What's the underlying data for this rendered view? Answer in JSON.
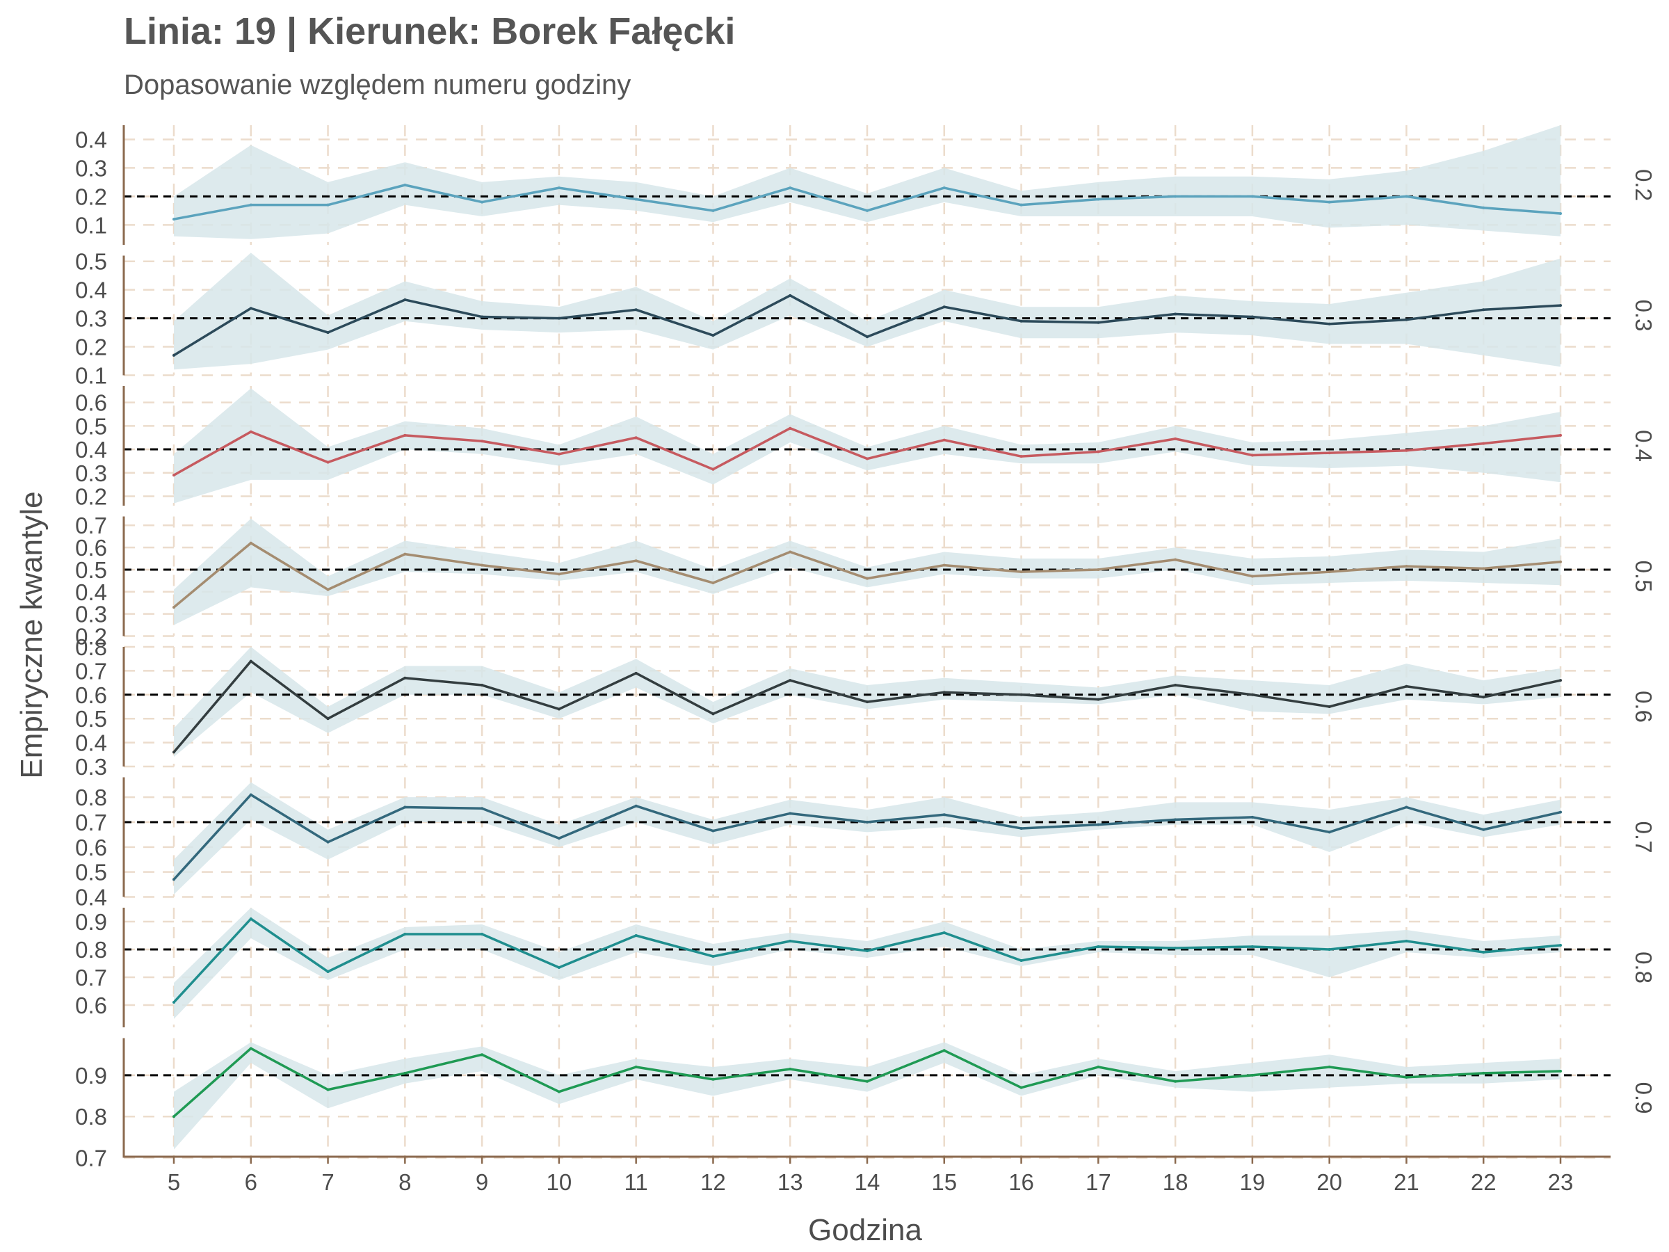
{
  "chart_data": {
    "type": "line",
    "title": "Linia: 19 | Kierunek: Borek Fałęcki",
    "subtitle": "Dopasowanie względem numeru godziny",
    "xlabel": "Godzina",
    "ylabel": "Empiryczne kwantyle",
    "x": [
      5,
      6,
      7,
      8,
      9,
      10,
      11,
      12,
      13,
      14,
      15,
      16,
      17,
      18,
      19,
      20,
      21,
      22,
      23
    ],
    "grid": true,
    "panels": [
      {
        "facet_label": "0.2",
        "reference": 0.2,
        "color": "#5ba3bd",
        "ylim": [
          0.03,
          0.45
        ],
        "yticks": [
          "0.1",
          "0.2",
          "0.3",
          "0.4"
        ],
        "values": [
          0.12,
          0.17,
          0.17,
          0.24,
          0.18,
          0.23,
          0.19,
          0.15,
          0.23,
          0.15,
          0.23,
          0.17,
          0.19,
          0.2,
          0.2,
          0.18,
          0.2,
          0.16,
          0.14
        ],
        "lower": [
          0.06,
          0.05,
          0.07,
          0.17,
          0.13,
          0.17,
          0.15,
          0.11,
          0.18,
          0.11,
          0.18,
          0.13,
          0.13,
          0.13,
          0.13,
          0.09,
          0.1,
          0.08,
          0.06
        ],
        "upper": [
          0.2,
          0.38,
          0.25,
          0.32,
          0.25,
          0.27,
          0.25,
          0.2,
          0.3,
          0.21,
          0.3,
          0.22,
          0.25,
          0.27,
          0.27,
          0.26,
          0.29,
          0.36,
          0.45
        ]
      },
      {
        "facet_label": "0.3",
        "reference": 0.3,
        "color": "#2c4a5a",
        "ylim": [
          0.1,
          0.52
        ],
        "yticks": [
          "0.1",
          "0.2",
          "0.3",
          "0.4",
          "0.5"
        ],
        "values": [
          0.17,
          0.335,
          0.25,
          0.365,
          0.305,
          0.3,
          0.33,
          0.24,
          0.38,
          0.235,
          0.34,
          0.29,
          0.285,
          0.315,
          0.305,
          0.28,
          0.295,
          0.33,
          0.345
        ],
        "lower": [
          0.12,
          0.14,
          0.19,
          0.29,
          0.26,
          0.25,
          0.26,
          0.19,
          0.31,
          0.2,
          0.29,
          0.23,
          0.23,
          0.25,
          0.24,
          0.21,
          0.21,
          0.17,
          0.13
        ],
        "upper": [
          0.29,
          0.53,
          0.31,
          0.43,
          0.36,
          0.34,
          0.41,
          0.29,
          0.44,
          0.29,
          0.4,
          0.34,
          0.34,
          0.38,
          0.36,
          0.35,
          0.39,
          0.43,
          0.51
        ]
      },
      {
        "facet_label": "0.4",
        "reference": 0.4,
        "color": "#c65a5f",
        "ylim": [
          0.16,
          0.67
        ],
        "yticks": [
          "0.2",
          "0.3",
          "0.4",
          "0.5",
          "0.6"
        ],
        "values": [
          0.29,
          0.475,
          0.345,
          0.46,
          0.435,
          0.38,
          0.45,
          0.315,
          0.49,
          0.36,
          0.44,
          0.37,
          0.39,
          0.445,
          0.375,
          0.385,
          0.395,
          0.425,
          0.46
        ],
        "lower": [
          0.17,
          0.27,
          0.27,
          0.4,
          0.38,
          0.33,
          0.38,
          0.25,
          0.43,
          0.31,
          0.38,
          0.34,
          0.34,
          0.39,
          0.33,
          0.32,
          0.33,
          0.3,
          0.26
        ],
        "upper": [
          0.38,
          0.66,
          0.41,
          0.52,
          0.49,
          0.42,
          0.54,
          0.38,
          0.55,
          0.41,
          0.5,
          0.42,
          0.43,
          0.5,
          0.43,
          0.44,
          0.47,
          0.5,
          0.56
        ]
      },
      {
        "facet_label": "0.5",
        "reference": 0.5,
        "color": "#a48c70",
        "ylim": [
          0.2,
          0.74
        ],
        "yticks": [
          "0.2",
          "0.3",
          "0.4",
          "0.5",
          "0.6",
          "0.7"
        ],
        "values": [
          0.33,
          0.62,
          0.41,
          0.57,
          0.52,
          0.48,
          0.54,
          0.44,
          0.58,
          0.46,
          0.52,
          0.49,
          0.5,
          0.545,
          0.47,
          0.49,
          0.515,
          0.505,
          0.535
        ],
        "lower": [
          0.25,
          0.42,
          0.38,
          0.49,
          0.48,
          0.45,
          0.49,
          0.39,
          0.51,
          0.42,
          0.48,
          0.46,
          0.46,
          0.5,
          0.43,
          0.44,
          0.45,
          0.44,
          0.43
        ],
        "upper": [
          0.41,
          0.73,
          0.47,
          0.63,
          0.58,
          0.53,
          0.63,
          0.5,
          0.63,
          0.51,
          0.58,
          0.55,
          0.55,
          0.6,
          0.55,
          0.56,
          0.59,
          0.58,
          0.64
        ]
      },
      {
        "facet_label": "0.6",
        "reference": 0.6,
        "color": "#333d3f",
        "ylim": [
          0.3,
          0.8
        ],
        "yticks": [
          "0.3",
          "0.4",
          "0.5",
          "0.6",
          "0.7",
          "0.8"
        ],
        "values": [
          0.36,
          0.74,
          0.5,
          0.67,
          0.64,
          0.54,
          0.69,
          0.52,
          0.66,
          0.57,
          0.61,
          0.6,
          0.58,
          0.64,
          0.6,
          0.55,
          0.635,
          0.59,
          0.66
        ],
        "lower": [
          0.34,
          0.61,
          0.44,
          0.6,
          0.6,
          0.5,
          0.63,
          0.48,
          0.6,
          0.54,
          0.58,
          0.57,
          0.56,
          0.6,
          0.53,
          0.52,
          0.58,
          0.56,
          0.59
        ],
        "upper": [
          0.46,
          0.8,
          0.55,
          0.72,
          0.72,
          0.61,
          0.75,
          0.57,
          0.71,
          0.64,
          0.67,
          0.65,
          0.63,
          0.68,
          0.66,
          0.64,
          0.73,
          0.66,
          0.71
        ]
      },
      {
        "facet_label": "0.7",
        "reference": 0.7,
        "color": "#33687c",
        "ylim": [
          0.4,
          0.88
        ],
        "yticks": [
          "0.4",
          "0.5",
          "0.6",
          "0.7",
          "0.8"
        ],
        "values": [
          0.47,
          0.81,
          0.62,
          0.76,
          0.755,
          0.635,
          0.765,
          0.665,
          0.735,
          0.7,
          0.73,
          0.675,
          0.69,
          0.71,
          0.72,
          0.66,
          0.76,
          0.67,
          0.74
        ],
        "lower": [
          0.41,
          0.71,
          0.55,
          0.7,
          0.7,
          0.6,
          0.7,
          0.61,
          0.69,
          0.66,
          0.68,
          0.64,
          0.67,
          0.69,
          0.69,
          0.58,
          0.7,
          0.64,
          0.69
        ],
        "upper": [
          0.55,
          0.86,
          0.67,
          0.8,
          0.8,
          0.69,
          0.8,
          0.71,
          0.79,
          0.75,
          0.8,
          0.72,
          0.74,
          0.78,
          0.78,
          0.75,
          0.8,
          0.73,
          0.79
        ]
      },
      {
        "facet_label": "0.8",
        "reference": 0.8,
        "color": "#1f8e8e",
        "ylim": [
          0.52,
          0.95
        ],
        "yticks": [
          "0.6",
          "0.7",
          "0.8",
          "0.9"
        ],
        "values": [
          0.61,
          0.91,
          0.72,
          0.855,
          0.855,
          0.735,
          0.85,
          0.775,
          0.83,
          0.795,
          0.86,
          0.76,
          0.81,
          0.805,
          0.81,
          0.8,
          0.83,
          0.79,
          0.815
        ],
        "lower": [
          0.55,
          0.84,
          0.69,
          0.8,
          0.8,
          0.69,
          0.79,
          0.74,
          0.8,
          0.77,
          0.81,
          0.74,
          0.79,
          0.78,
          0.78,
          0.7,
          0.79,
          0.77,
          0.79
        ],
        "upper": [
          0.68,
          0.95,
          0.77,
          0.88,
          0.89,
          0.79,
          0.89,
          0.82,
          0.86,
          0.83,
          0.9,
          0.8,
          0.83,
          0.83,
          0.85,
          0.85,
          0.87,
          0.83,
          0.85
        ]
      },
      {
        "facet_label": "0.9",
        "reference": 0.9,
        "color": "#1f9a54",
        "ylim": [
          0.7,
          0.99
        ],
        "yticks": [
          "0.7",
          "0.8",
          "0.9"
        ],
        "values": [
          0.8,
          0.965,
          0.865,
          0.905,
          0.95,
          0.86,
          0.92,
          0.89,
          0.915,
          0.885,
          0.96,
          0.87,
          0.92,
          0.885,
          0.9,
          0.92,
          0.895,
          0.905,
          0.91
        ],
        "lower": [
          0.72,
          0.93,
          0.82,
          0.88,
          0.91,
          0.83,
          0.89,
          0.85,
          0.89,
          0.86,
          0.93,
          0.85,
          0.9,
          0.87,
          0.86,
          0.87,
          0.88,
          0.88,
          0.89
        ],
        "upper": [
          0.86,
          0.98,
          0.9,
          0.94,
          0.97,
          0.9,
          0.94,
          0.92,
          0.94,
          0.92,
          0.98,
          0.9,
          0.94,
          0.91,
          0.93,
          0.95,
          0.92,
          0.93,
          0.94
        ]
      }
    ]
  }
}
